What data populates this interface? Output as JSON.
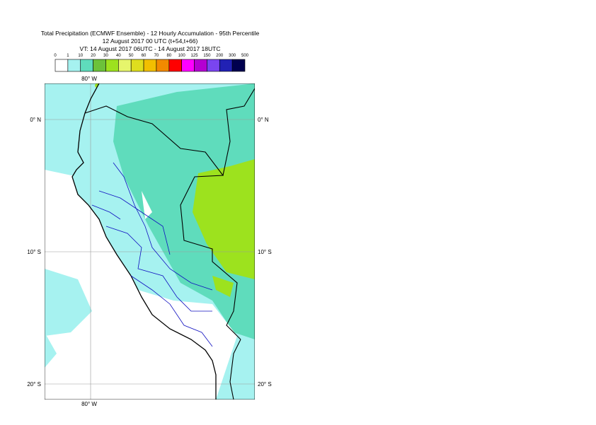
{
  "header": {
    "title_lines": [
      "Total Precipitation (ECMWF Ensemble) - 12 Hourly Accumulation - 95th Percentile",
      "12 August 2017 00 UTC (t+54,t+66)",
      "VT: 14 August 2017 06UTC - 14 August 2017 18UTC"
    ]
  },
  "legend": {
    "labels": [
      0,
      1,
      10,
      20,
      30,
      40,
      50,
      60,
      70,
      80,
      100,
      125,
      150,
      200,
      300,
      500
    ],
    "colors": [
      "#ffffff",
      "#a6f2f0",
      "#5fdcbc",
      "#6cc23a",
      "#9de21e",
      "#e6f56c",
      "#dede1e",
      "#f2bf00",
      "#f28a00",
      "#ff0000",
      "#ff00ff",
      "#b400d2",
      "#7a45f0",
      "#2121b4",
      "#00004f"
    ]
  },
  "map": {
    "lon_labels": [
      "80° W"
    ],
    "lat_labels": [
      "0° N",
      "10° S",
      "20° S"
    ]
  }
}
